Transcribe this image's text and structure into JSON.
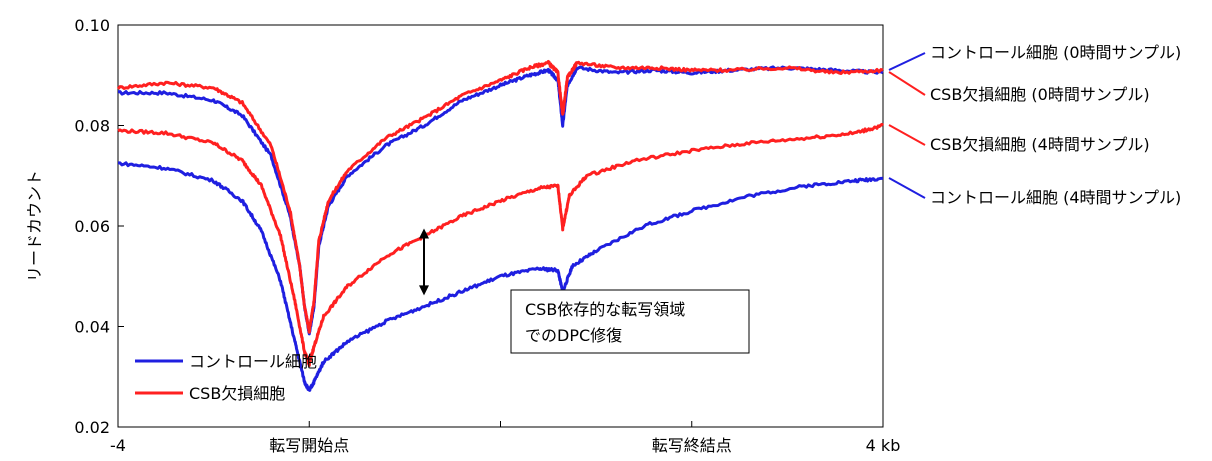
{
  "chart_data": {
    "type": "line",
    "ylabel": "リードカウント",
    "xlabel": "",
    "x_positions": [
      -4,
      -2,
      0,
      2,
      4
    ],
    "xtick_labels": [
      "-4",
      "転写開始点",
      "",
      "転写終結点",
      "4 kb"
    ],
    "ylim": [
      0.02,
      0.1
    ],
    "yticks": [
      0.02,
      0.04,
      0.06,
      0.08,
      0.1
    ],
    "ytick_labels": [
      "0.02",
      "0.04",
      "0.06",
      "0.08",
      "0.10"
    ],
    "grid": false,
    "colors": {
      "control": "#1f1fe0",
      "csb": "#ff2020"
    },
    "series": [
      {
        "name": "コントロール細胞 (0時間サンプル)",
        "color": "#1f1fe0",
        "points": [
          [
            -4,
            0.0865
          ],
          [
            -3.5,
            0.0865
          ],
          [
            -3.0,
            0.085
          ],
          [
            -2.7,
            0.082
          ],
          [
            -2.4,
            0.074
          ],
          [
            -2.2,
            0.062
          ],
          [
            -2.1,
            0.052
          ],
          [
            -2.05,
            0.044
          ],
          [
            -2.0,
            0.0385
          ],
          [
            -1.95,
            0.044
          ],
          [
            -1.9,
            0.056
          ],
          [
            -1.8,
            0.064
          ],
          [
            -1.6,
            0.07
          ],
          [
            -1.2,
            0.076
          ],
          [
            -0.8,
            0.08
          ],
          [
            -0.4,
            0.085
          ],
          [
            0,
            0.088
          ],
          [
            0.3,
            0.09
          ],
          [
            0.5,
            0.091
          ],
          [
            0.6,
            0.089
          ],
          [
            0.65,
            0.08
          ],
          [
            0.7,
            0.088
          ],
          [
            0.8,
            0.0915
          ],
          [
            1.2,
            0.0905
          ],
          [
            1.6,
            0.091
          ],
          [
            2.0,
            0.0905
          ],
          [
            2.4,
            0.091
          ],
          [
            3.0,
            0.0915
          ],
          [
            3.5,
            0.091
          ],
          [
            4.0,
            0.0905
          ]
        ]
      },
      {
        "name": "CSB欠損細胞 (0時間サンプル)",
        "color": "#ff2020",
        "points": [
          [
            -4,
            0.0875
          ],
          [
            -3.5,
            0.0885
          ],
          [
            -3.0,
            0.0875
          ],
          [
            -2.7,
            0.0845
          ],
          [
            -2.4,
            0.076
          ],
          [
            -2.2,
            0.063
          ],
          [
            -2.1,
            0.052
          ],
          [
            -2.05,
            0.044
          ],
          [
            -2.0,
            0.039
          ],
          [
            -1.95,
            0.045
          ],
          [
            -1.9,
            0.057
          ],
          [
            -1.8,
            0.065
          ],
          [
            -1.6,
            0.071
          ],
          [
            -1.2,
            0.0775
          ],
          [
            -0.8,
            0.0815
          ],
          [
            -0.4,
            0.086
          ],
          [
            0,
            0.089
          ],
          [
            0.3,
            0.0915
          ],
          [
            0.5,
            0.0925
          ],
          [
            0.6,
            0.0905
          ],
          [
            0.65,
            0.082
          ],
          [
            0.7,
            0.0895
          ],
          [
            0.8,
            0.0925
          ],
          [
            1.2,
            0.0915
          ],
          [
            1.6,
            0.0915
          ],
          [
            2.0,
            0.091
          ],
          [
            2.4,
            0.091
          ],
          [
            3.0,
            0.0915
          ],
          [
            3.5,
            0.0905
          ],
          [
            4.0,
            0.091
          ]
        ]
      },
      {
        "name": "CSB欠損細胞 (4時間サンプル)",
        "color": "#ff2020",
        "points": [
          [
            -4,
            0.079
          ],
          [
            -3.5,
            0.0785
          ],
          [
            -3.0,
            0.0765
          ],
          [
            -2.7,
            0.073
          ],
          [
            -2.5,
            0.068
          ],
          [
            -2.3,
            0.058
          ],
          [
            -2.15,
            0.045
          ],
          [
            -2.05,
            0.035
          ],
          [
            -2.0,
            0.0325
          ],
          [
            -1.95,
            0.036
          ],
          [
            -1.85,
            0.042
          ],
          [
            -1.6,
            0.048
          ],
          [
            -1.2,
            0.054
          ],
          [
            -0.8,
            0.058
          ],
          [
            -0.4,
            0.062
          ],
          [
            0,
            0.065
          ],
          [
            0.4,
            0.0675
          ],
          [
            0.6,
            0.068
          ],
          [
            0.65,
            0.0595
          ],
          [
            0.72,
            0.066
          ],
          [
            0.9,
            0.07
          ],
          [
            1.4,
            0.073
          ],
          [
            2.0,
            0.075
          ],
          [
            2.6,
            0.0765
          ],
          [
            3.2,
            0.0775
          ],
          [
            3.7,
            0.0785
          ],
          [
            4.0,
            0.08
          ]
        ]
      },
      {
        "name": "コントロール細胞 (4時間サンプル)",
        "color": "#1f1fe0",
        "points": [
          [
            -4,
            0.0725
          ],
          [
            -3.5,
            0.0715
          ],
          [
            -3.0,
            0.069
          ],
          [
            -2.7,
            0.065
          ],
          [
            -2.5,
            0.059
          ],
          [
            -2.3,
            0.049
          ],
          [
            -2.15,
            0.037
          ],
          [
            -2.05,
            0.029
          ],
          [
            -2.0,
            0.0272
          ],
          [
            -1.95,
            0.029
          ],
          [
            -1.85,
            0.033
          ],
          [
            -1.6,
            0.037
          ],
          [
            -1.2,
            0.041
          ],
          [
            -0.8,
            0.044
          ],
          [
            -0.4,
            0.047
          ],
          [
            0,
            0.05
          ],
          [
            0.4,
            0.0515
          ],
          [
            0.6,
            0.0512
          ],
          [
            0.65,
            0.0468
          ],
          [
            0.75,
            0.052
          ],
          [
            1.0,
            0.055
          ],
          [
            1.5,
            0.06
          ],
          [
            2.0,
            0.063
          ],
          [
            2.6,
            0.066
          ],
          [
            3.2,
            0.068
          ],
          [
            3.7,
            0.069
          ],
          [
            4.0,
            0.0695
          ]
        ]
      }
    ],
    "legend": {
      "placement": "bottom-left",
      "entries": [
        {
          "label": "コントロール細胞",
          "color": "#1f1fe0"
        },
        {
          "label": "CSB欠損細胞",
          "color": "#ff2020"
        }
      ]
    },
    "right_labels": [
      {
        "text": "コントロール細胞 (0時間サンプル)",
        "color": "#1f1fe0"
      },
      {
        "text": "CSB欠損細胞 (0時間サンプル)",
        "color": "#ff2020"
      },
      {
        "text": "CSB欠損細胞 (4時間サンプル)",
        "color": "#ff2020"
      },
      {
        "text": "コントロール細胞 (4時間サンプル)",
        "color": "#1f1fe0"
      }
    ],
    "annotation": {
      "lines": [
        "CSB依存的な転写領域",
        "でのDPC修復"
      ],
      "arrow_x": -0.8,
      "arrow_y_top": 0.0595,
      "arrow_y_bottom": 0.0462
    }
  }
}
